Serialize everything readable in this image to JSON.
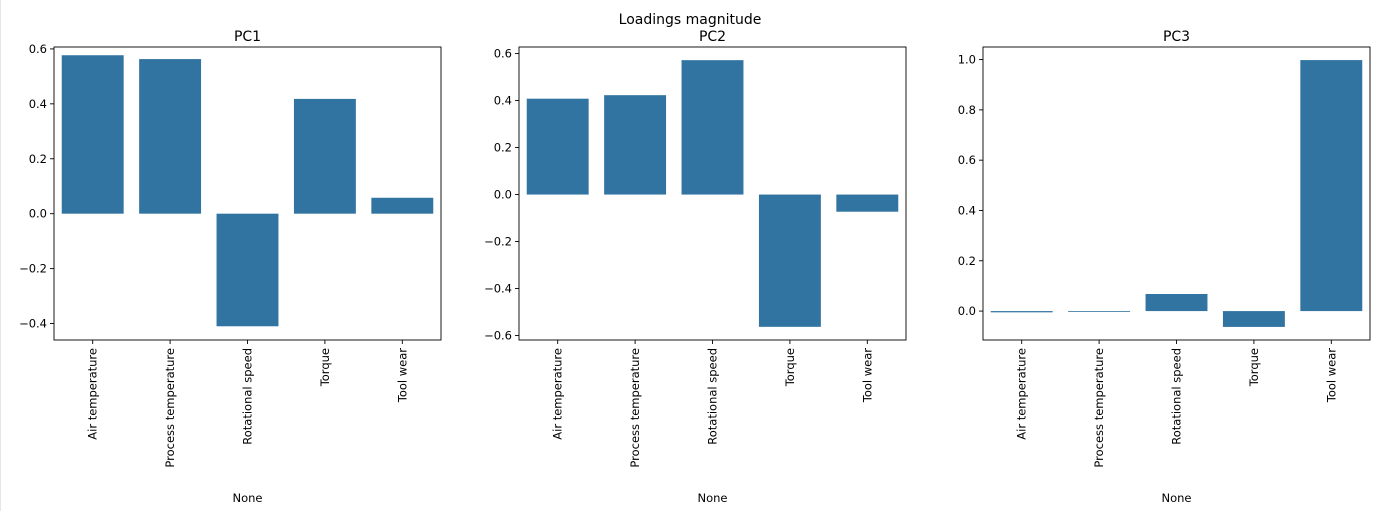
{
  "figure": {
    "suptitle": "Loadings magnitude",
    "bar_color": "#3274a1"
  },
  "chart_data": [
    {
      "type": "bar",
      "title": "PC1",
      "xlabel": "None",
      "ylabel": "",
      "categories": [
        "Air temperature",
        "Process temperature",
        "Rotational speed",
        "Torque",
        "Tool wear"
      ],
      "values": [
        0.577,
        0.563,
        -0.41,
        0.418,
        0.058
      ],
      "ylim": [
        -0.46,
        0.607
      ],
      "yticks": [
        -0.4,
        -0.2,
        0.0,
        0.2,
        0.4,
        0.6
      ],
      "ytick_labels": [
        "−0.4",
        "−0.2",
        "0.0",
        "0.2",
        "0.4",
        "0.6"
      ]
    },
    {
      "type": "bar",
      "title": "PC2",
      "xlabel": "None",
      "ylabel": "",
      "categories": [
        "Air temperature",
        "Process temperature",
        "Rotational speed",
        "Torque",
        "Tool wear"
      ],
      "values": [
        0.408,
        0.423,
        0.572,
        -0.563,
        -0.073
      ],
      "ylim": [
        -0.619,
        0.628
      ],
      "yticks": [
        -0.6,
        -0.4,
        -0.2,
        0.0,
        0.2,
        0.4,
        0.6
      ],
      "ytick_labels": [
        "−0.6",
        "−0.4",
        "−0.2",
        "0.0",
        "0.2",
        "0.4",
        "0.6"
      ]
    },
    {
      "type": "bar",
      "title": "PC3",
      "xlabel": "None",
      "ylabel": "",
      "categories": [
        "Air temperature",
        "Process temperature",
        "Rotational speed",
        "Torque",
        "Tool wear"
      ],
      "values": [
        -0.005,
        0.0,
        0.068,
        -0.063,
        0.998
      ],
      "ylim": [
        -0.115,
        1.05
      ],
      "yticks": [
        0.0,
        0.2,
        0.4,
        0.6,
        0.8,
        1.0
      ],
      "ytick_labels": [
        "0.0",
        "0.2",
        "0.4",
        "0.6",
        "0.8",
        "1.0"
      ]
    }
  ]
}
